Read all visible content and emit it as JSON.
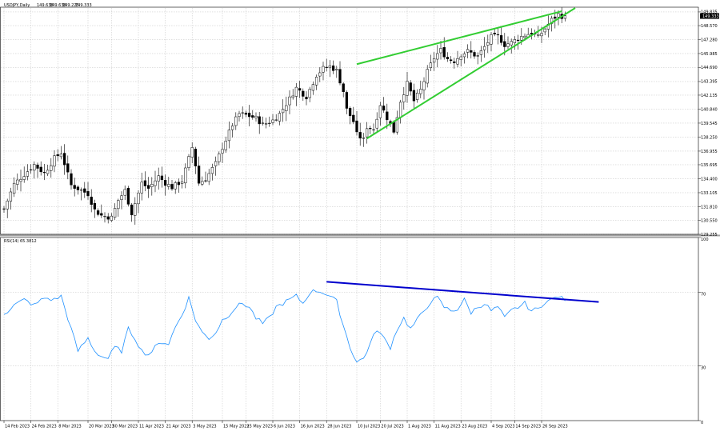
{
  "chart_data": [
    {
      "type": "candlestick",
      "symbol": "USDJPY,Daily",
      "header_values": [
        "149.638",
        "149.638",
        "149.225",
        "149.333"
      ],
      "current_price_label": "149.333",
      "y_ticks": [
        149.835,
        148.57,
        147.28,
        145.985,
        144.69,
        143.395,
        142.135,
        140.84,
        139.545,
        138.25,
        136.955,
        135.695,
        134.4,
        133.105,
        131.81,
        130.55,
        129.255
      ],
      "y_tick_labels": [
        "149.835",
        "148.570",
        "147.280",
        "145.985",
        "144.690",
        "143.395",
        "142.135",
        "140.840",
        "139.545",
        "138.250",
        "136.955",
        "135.695",
        "134.400",
        "133.105",
        "131.810",
        "130.550",
        "129.255"
      ],
      "ylim": [
        129.255,
        150.2
      ],
      "close_path": {
        "bars": 168,
        "anchors": [
          [
            0,
            131.6
          ],
          [
            3,
            133.9
          ],
          [
            6,
            134.8
          ],
          [
            9,
            135.7
          ],
          [
            12,
            134.9
          ],
          [
            15,
            136.3
          ],
          [
            17,
            136.8
          ],
          [
            20,
            133.8
          ],
          [
            25,
            133.0
          ],
          [
            27,
            131.5
          ],
          [
            29,
            131.0
          ],
          [
            32,
            130.8
          ],
          [
            34,
            132.4
          ],
          [
            36,
            133.3
          ],
          [
            38,
            131.2
          ],
          [
            41,
            134.0
          ],
          [
            43,
            133.5
          ],
          [
            46,
            134.6
          ],
          [
            48,
            134.0
          ],
          [
            50,
            133.6
          ],
          [
            53,
            134.2
          ],
          [
            56,
            137.3
          ],
          [
            58,
            134.0
          ],
          [
            60,
            134.4
          ],
          [
            63,
            135.8
          ],
          [
            65,
            137.3
          ],
          [
            68,
            139.4
          ],
          [
            70,
            140.4
          ],
          [
            72,
            140.3
          ],
          [
            75,
            140.0
          ],
          [
            77,
            139.4
          ],
          [
            80,
            139.8
          ],
          [
            82,
            140.4
          ],
          [
            85,
            141.8
          ],
          [
            87,
            142.8
          ],
          [
            90,
            142.0
          ],
          [
            93,
            144.0
          ],
          [
            95,
            144.6
          ],
          [
            97,
            144.8
          ],
          [
            99,
            144.4
          ],
          [
            101,
            142.5
          ],
          [
            102,
            140.8
          ],
          [
            104,
            139.7
          ],
          [
            105,
            138.5
          ],
          [
            107,
            138.0
          ],
          [
            108,
            139.2
          ],
          [
            110,
            139.0
          ],
          [
            112,
            141.3
          ],
          [
            115,
            139.4
          ],
          [
            116,
            138.8
          ],
          [
            118,
            141.6
          ],
          [
            120,
            143.2
          ],
          [
            122,
            141.6
          ],
          [
            124,
            142.6
          ],
          [
            126,
            144.3
          ],
          [
            128,
            145.6
          ],
          [
            130,
            146.3
          ],
          [
            132,
            145.5
          ],
          [
            134,
            145.3
          ],
          [
            136,
            145.9
          ],
          [
            138,
            146.2
          ],
          [
            141,
            145.7
          ],
          [
            143,
            146.6
          ],
          [
            145,
            147.5
          ],
          [
            147,
            147.6
          ],
          [
            149,
            146.8
          ],
          [
            151,
            147.0
          ],
          [
            153,
            147.4
          ],
          [
            155,
            147.7
          ],
          [
            157,
            147.9
          ],
          [
            159,
            147.5
          ],
          [
            161,
            148.3
          ],
          [
            163,
            149.1
          ],
          [
            165,
            149.6
          ],
          [
            167,
            149.3
          ]
        ],
        "wick_range": [
          0.15,
          0.95
        ]
      },
      "trendlines": [
        {
          "color": "#32cd32",
          "points": [
            [
              "10 Jul 2023",
              145.0
            ],
            [
              "4 Oct 2023",
              149.9
            ]
          ]
        },
        {
          "color": "#32cd32",
          "points": [
            [
              "14 Jul 2023",
              138.12
            ],
            [
              "10 Oct 2023",
              150.2
            ]
          ]
        }
      ],
      "grid": true
    },
    {
      "type": "line",
      "title": "RSI(14) 65.3812",
      "ylim": [
        0,
        100
      ],
      "y_ticks": [
        0,
        30,
        70,
        100
      ],
      "y_tick_labels": [
        "0",
        "30",
        "70",
        "100"
      ],
      "level_lines": [
        30,
        70
      ],
      "color": "#1e90ff",
      "series": {
        "name": "RSI(14)",
        "anchors": [
          [
            0,
            58
          ],
          [
            3,
            63
          ],
          [
            6,
            66
          ],
          [
            9,
            63
          ],
          [
            12,
            67
          ],
          [
            15,
            66
          ],
          [
            17,
            68
          ],
          [
            20,
            50
          ],
          [
            22,
            38
          ],
          [
            25,
            45
          ],
          [
            27,
            38
          ],
          [
            29,
            35
          ],
          [
            31,
            34
          ],
          [
            33,
            40
          ],
          [
            35,
            38
          ],
          [
            37,
            50
          ],
          [
            39,
            45
          ],
          [
            41,
            38
          ],
          [
            43,
            36
          ],
          [
            45,
            40
          ],
          [
            47,
            43
          ],
          [
            49,
            42
          ],
          [
            51,
            51
          ],
          [
            53,
            58
          ],
          [
            55,
            67
          ],
          [
            57,
            55
          ],
          [
            59,
            48
          ],
          [
            61,
            45
          ],
          [
            63,
            48
          ],
          [
            65,
            55
          ],
          [
            67,
            58
          ],
          [
            69,
            62
          ],
          [
            71,
            64
          ],
          [
            73,
            62
          ],
          [
            75,
            56
          ],
          [
            77,
            53
          ],
          [
            79,
            56
          ],
          [
            81,
            62
          ],
          [
            83,
            64
          ],
          [
            85,
            66
          ],
          [
            87,
            68
          ],
          [
            89,
            64
          ],
          [
            91,
            70
          ],
          [
            93,
            71
          ],
          [
            95,
            70
          ],
          [
            97,
            68
          ],
          [
            99,
            65
          ],
          [
            101,
            52
          ],
          [
            103,
            40
          ],
          [
            105,
            32
          ],
          [
            107,
            34
          ],
          [
            109,
            42
          ],
          [
            111,
            50
          ],
          [
            113,
            45
          ],
          [
            115,
            40
          ],
          [
            117,
            50
          ],
          [
            119,
            56
          ],
          [
            121,
            50
          ],
          [
            123,
            55
          ],
          [
            125,
            60
          ],
          [
            127,
            65
          ],
          [
            129,
            67
          ],
          [
            131,
            62
          ],
          [
            133,
            60
          ],
          [
            135,
            61
          ],
          [
            137,
            66
          ],
          [
            139,
            59
          ],
          [
            141,
            62
          ],
          [
            143,
            64
          ],
          [
            145,
            60
          ],
          [
            147,
            62
          ],
          [
            149,
            56
          ],
          [
            151,
            60
          ],
          [
            153,
            62
          ],
          [
            155,
            64
          ],
          [
            157,
            60
          ],
          [
            159,
            61
          ],
          [
            161,
            65
          ],
          [
            163,
            66
          ],
          [
            165,
            68
          ],
          [
            167,
            65.38
          ]
        ]
      },
      "trendline": {
        "color": "#0000cd",
        "points": [
          [
            "28 Jun 2023",
            75.8
          ],
          [
            "19 Oct 2023",
            64.8
          ]
        ]
      }
    }
  ],
  "x_axis": {
    "bars": 168,
    "start_date": "14 Feb 2023",
    "ticks": [
      {
        "date": "14 Feb 2023",
        "label": "14 Feb 2023"
      },
      {
        "date": "24 Feb 2023",
        "label": "24 Feb 2023"
      },
      {
        "date": "8 Mar 2023",
        "label": "8 Mar 2023"
      },
      {
        "date": "20 Mar 2023",
        "label": "20 Mar 2023"
      },
      {
        "date": "30 Mar 2023",
        "label": "30 Mar 2023"
      },
      {
        "date": "11 Apr 2023",
        "label": "11 Apr 2023"
      },
      {
        "date": "21 Apr 2023",
        "label": "21 Apr 2023"
      },
      {
        "date": "3 May 2023",
        "label": "3 May 2023"
      },
      {
        "date": "15 May 2023",
        "label": "15 May 2023"
      },
      {
        "date": "25 May 2023",
        "label": "25 May 2023"
      },
      {
        "date": "6 Jun 2023",
        "label": "6 Jun 2023"
      },
      {
        "date": "16 Jun 2023",
        "label": "16 Jun 2023"
      },
      {
        "date": "28 Jun 2023",
        "label": "28 Jun 2023"
      },
      {
        "date": "10 Jul 2023",
        "label": "10 Jul 2023"
      },
      {
        "date": "20 Jul 2023",
        "label": "20 Jul 2023"
      },
      {
        "date": "1 Aug 2023",
        "label": "1 Aug 2023"
      },
      {
        "date": "11 Aug 2023",
        "label": "11 Aug 2023"
      },
      {
        "date": "23 Aug 2023",
        "label": "23 Aug 2023"
      },
      {
        "date": "4 Sep 2023",
        "label": "4 Sep 2023"
      },
      {
        "date": "14 Sep 2023",
        "label": "14 Sep 2023"
      },
      {
        "date": "26 Sep 2023",
        "label": "26 Sep 2023"
      }
    ]
  },
  "colors": {
    "bull_candle": "#ffffff",
    "bear_candle": "#000000",
    "grid": "#c0c0c0",
    "price_box": "#000000",
    "separator": "#a0a0a0"
  }
}
